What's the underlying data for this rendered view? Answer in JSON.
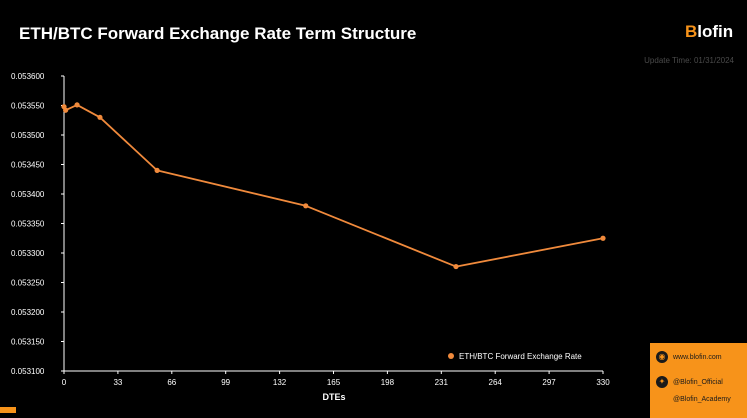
{
  "header": {
    "title": "ETH/BTC Forward Exchange Rate Term Structure",
    "brand_b": "B",
    "brand_rest": "lofin",
    "update_time": "Update Time: 01/31/2024"
  },
  "social": {
    "website": "www.blofin.com",
    "twitter": "@Blofin_Official",
    "academy": "@Blofin_Academy"
  },
  "colors": {
    "background": "#000000",
    "accent": "#f7931a",
    "line": "#f08a3c",
    "axis": "#ffffff"
  },
  "chart_data": {
    "type": "line",
    "title": "ETH/BTC Forward Exchange Rate Term Structure",
    "xlabel": "DTEs",
    "ylabel": "",
    "xlim": [
      0,
      330
    ],
    "ylim": [
      0.0531,
      0.0536
    ],
    "xticks": [
      "0",
      "33",
      "66",
      "99",
      "132",
      "165",
      "198",
      "231",
      "264",
      "297",
      "330"
    ],
    "yticks": [
      "0.053100",
      "0.053150",
      "0.053200",
      "0.053250",
      "0.053300",
      "0.053350",
      "0.053400",
      "0.053450",
      "0.053500",
      "0.053550",
      "0.053600"
    ],
    "grid": false,
    "legend_position": "bottom-right",
    "series": [
      {
        "name": "ETH/BTC Forward Exchange Rate",
        "x": [
          0,
          1,
          8,
          22,
          57,
          148,
          240,
          330
        ],
        "y": [
          0.053548,
          0.053542,
          0.053551,
          0.05353,
          0.05344,
          0.05338,
          0.053277,
          0.053325
        ]
      }
    ]
  }
}
